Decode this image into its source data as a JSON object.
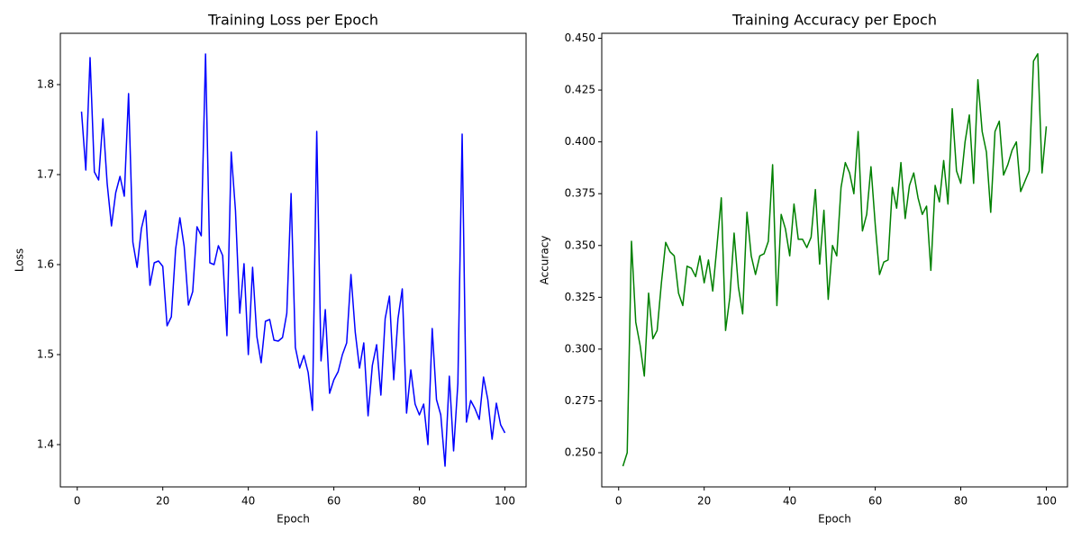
{
  "chart_data": [
    {
      "type": "line",
      "title": "Training Loss per Epoch",
      "x_label": "Epoch",
      "y_label": "Loss",
      "x": [
        1,
        2,
        3,
        4,
        5,
        6,
        7,
        8,
        9,
        10,
        11,
        12,
        13,
        14,
        15,
        16,
        17,
        18,
        19,
        20,
        21,
        22,
        23,
        24,
        25,
        26,
        27,
        28,
        29,
        30,
        31,
        32,
        33,
        34,
        35,
        36,
        37,
        38,
        39,
        40,
        41,
        42,
        43,
        44,
        45,
        46,
        47,
        48,
        49,
        50,
        51,
        52,
        53,
        54,
        55,
        56,
        57,
        58,
        59,
        60,
        61,
        62,
        63,
        64,
        65,
        66,
        67,
        68,
        69,
        70,
        71,
        72,
        73,
        74,
        75,
        76,
        77,
        78,
        79,
        80,
        81,
        82,
        83,
        84,
        85,
        86,
        87,
        88,
        89,
        90,
        91,
        92,
        93,
        94,
        95,
        96,
        97,
        98,
        99,
        100
      ],
      "series": [
        {
          "name": "Loss",
          "color": "#0000ff",
          "values": [
            1.77,
            1.705,
            1.83,
            1.703,
            1.694,
            1.762,
            1.69,
            1.643,
            1.68,
            1.698,
            1.676,
            1.79,
            1.625,
            1.597,
            1.64,
            1.66,
            1.577,
            1.602,
            1.604,
            1.598,
            1.532,
            1.542,
            1.617,
            1.652,
            1.62,
            1.555,
            1.57,
            1.642,
            1.632,
            1.834,
            1.602,
            1.6,
            1.621,
            1.61,
            1.521,
            1.725,
            1.66,
            1.546,
            1.601,
            1.5,
            1.597,
            1.52,
            1.491,
            1.537,
            1.539,
            1.516,
            1.515,
            1.519,
            1.546,
            1.679,
            1.508,
            1.485,
            1.499,
            1.48,
            1.438,
            1.748,
            1.493,
            1.55,
            1.457,
            1.472,
            1.481,
            1.5,
            1.513,
            1.589,
            1.525,
            1.485,
            1.513,
            1.432,
            1.488,
            1.511,
            1.455,
            1.54,
            1.565,
            1.472,
            1.54,
            1.573,
            1.435,
            1.483,
            1.445,
            1.433,
            1.445,
            1.4,
            1.529,
            1.45,
            1.433,
            1.376,
            1.476,
            1.393,
            1.468,
            1.745,
            1.425,
            1.449,
            1.44,
            1.428,
            1.475,
            1.45,
            1.406,
            1.446,
            1.422,
            1.413
          ]
        }
      ],
      "xlim": [
        -3.95,
        104.95
      ],
      "xticks": [
        0,
        20,
        40,
        60,
        80,
        100
      ],
      "ylim": [
        1.353,
        1.857
      ],
      "yticks": [
        1.4,
        1.5,
        1.6,
        1.7,
        1.8
      ]
    },
    {
      "type": "line",
      "title": "Training Accuracy per Epoch",
      "x_label": "Epoch",
      "y_label": "Accuracy",
      "x": [
        1,
        2,
        3,
        4,
        5,
        6,
        7,
        8,
        9,
        10,
        11,
        12,
        13,
        14,
        15,
        16,
        17,
        18,
        19,
        20,
        21,
        22,
        23,
        24,
        25,
        26,
        27,
        28,
        29,
        30,
        31,
        32,
        33,
        34,
        35,
        36,
        37,
        38,
        39,
        40,
        41,
        42,
        43,
        44,
        45,
        46,
        47,
        48,
        49,
        50,
        51,
        52,
        53,
        54,
        55,
        56,
        57,
        58,
        59,
        60,
        61,
        62,
        63,
        64,
        65,
        66,
        67,
        68,
        69,
        70,
        71,
        72,
        73,
        74,
        75,
        76,
        77,
        78,
        79,
        80,
        81,
        82,
        83,
        84,
        85,
        86,
        87,
        88,
        89,
        90,
        91,
        92,
        93,
        94,
        95,
        96,
        97,
        98,
        99,
        100
      ],
      "series": [
        {
          "name": "Accuracy",
          "color": "#008000",
          "values": [
            0.2435,
            0.25,
            0.352,
            0.313,
            0.302,
            0.287,
            0.327,
            0.305,
            0.309,
            0.332,
            0.3515,
            0.347,
            0.345,
            0.327,
            0.321,
            0.34,
            0.339,
            0.335,
            0.345,
            0.332,
            0.343,
            0.328,
            0.35,
            0.373,
            0.309,
            0.325,
            0.356,
            0.33,
            0.317,
            0.366,
            0.345,
            0.336,
            0.345,
            0.346,
            0.352,
            0.389,
            0.321,
            0.365,
            0.358,
            0.345,
            0.37,
            0.353,
            0.353,
            0.349,
            0.354,
            0.377,
            0.341,
            0.367,
            0.324,
            0.35,
            0.345,
            0.378,
            0.39,
            0.385,
            0.375,
            0.405,
            0.357,
            0.365,
            0.388,
            0.36,
            0.336,
            0.342,
            0.343,
            0.378,
            0.368,
            0.39,
            0.363,
            0.379,
            0.385,
            0.373,
            0.365,
            0.369,
            0.338,
            0.379,
            0.371,
            0.391,
            0.37,
            0.416,
            0.386,
            0.38,
            0.4,
            0.413,
            0.38,
            0.43,
            0.405,
            0.395,
            0.366,
            0.405,
            0.41,
            0.384,
            0.389,
            0.396,
            0.4,
            0.376,
            0.381,
            0.386,
            0.439,
            0.4425,
            0.385,
            0.4075
          ]
        }
      ],
      "xlim": [
        -3.95,
        104.95
      ],
      "xticks": [
        0,
        20,
        40,
        60,
        80,
        100
      ],
      "ylim": [
        0.2335,
        0.4524
      ],
      "yticks": [
        {
          "value": 0.25,
          "label": "0.250"
        },
        {
          "value": 0.275,
          "label": "0.275"
        },
        {
          "value": 0.3,
          "label": "0.300"
        },
        {
          "value": 0.325,
          "label": "0.325"
        },
        {
          "value": 0.35,
          "label": "0.350"
        },
        {
          "value": 0.375,
          "label": "0.375"
        },
        {
          "value": 0.4,
          "label": "0.400"
        },
        {
          "value": 0.425,
          "label": "0.425"
        },
        {
          "value": 0.45,
          "label": "0.450"
        }
      ]
    }
  ]
}
